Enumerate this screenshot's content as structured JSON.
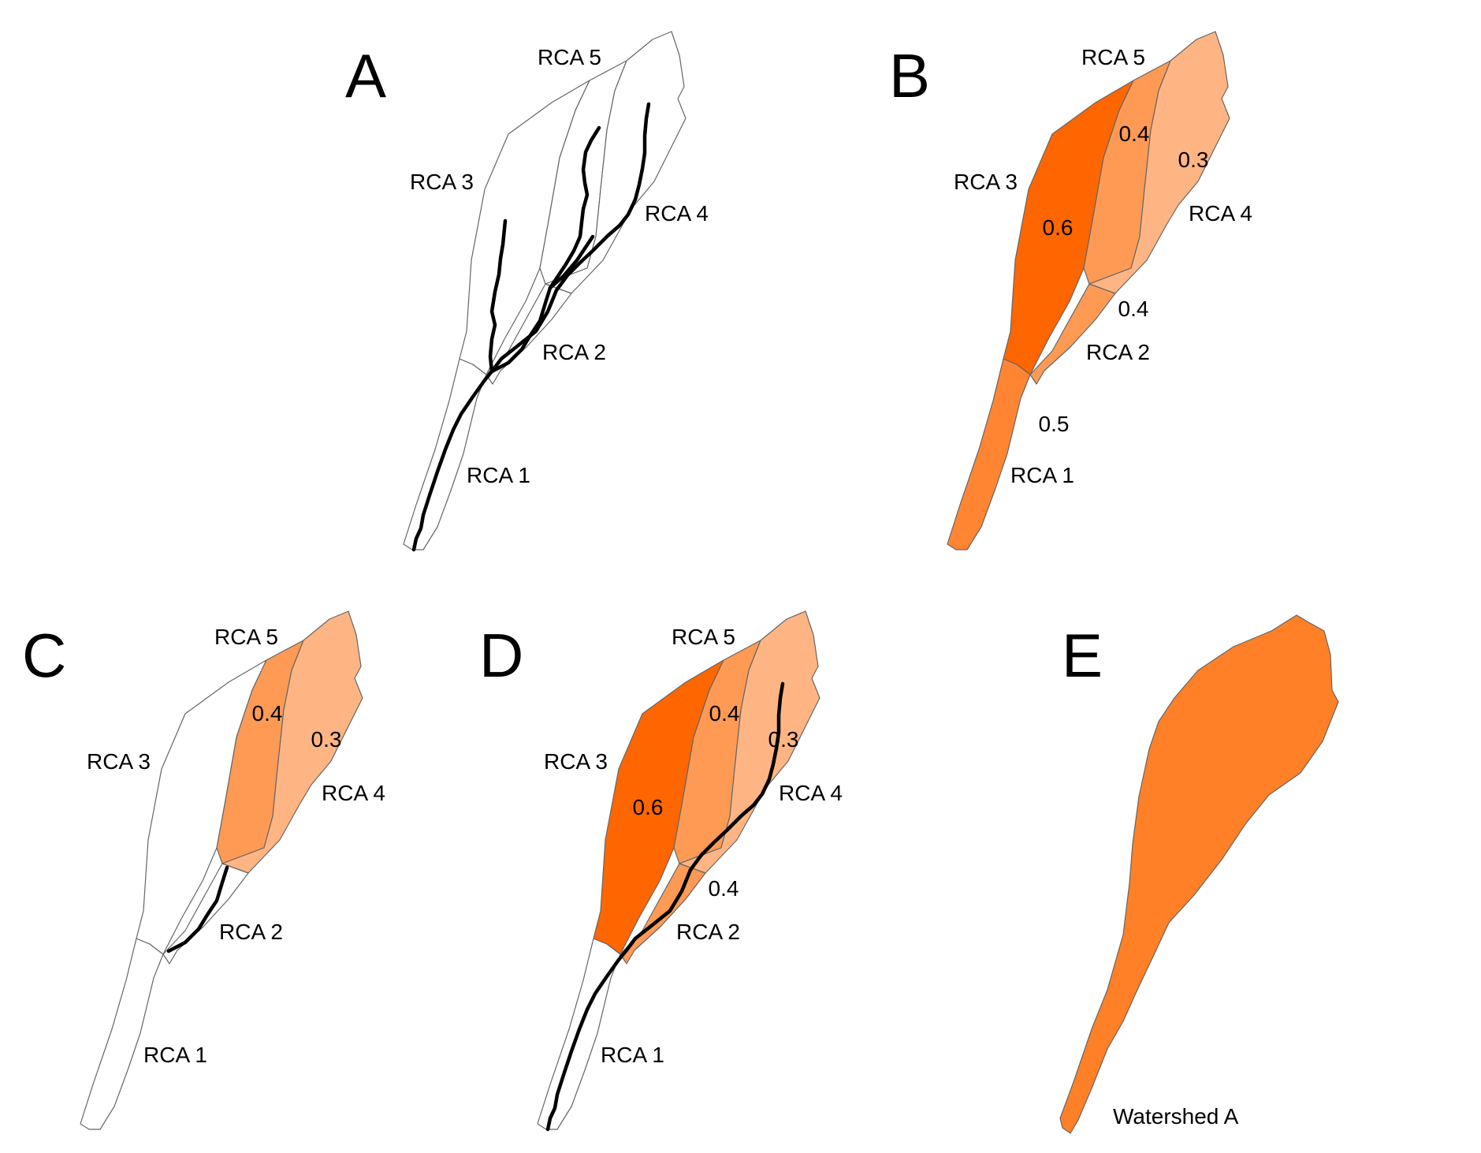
{
  "colors": {
    "none": "#ffffff",
    "high": "#ff6600",
    "mid": "#ff9a55",
    "low": "#ffb583",
    "rca1": "#ff8533",
    "watershed": "#ff8026",
    "outline": "#666666",
    "stream": "#000000"
  },
  "panels": [
    {
      "letter": "A",
      "rca_labels": [
        "RCA 1",
        "RCA 2",
        "RCA 3",
        "RCA 4",
        "RCA 5"
      ],
      "values": {
        "rca1": "",
        "rca2": "",
        "rca3": "",
        "rca4": "",
        "rca5": ""
      },
      "fills": {
        "rca1": "none",
        "rca2": "none",
        "rca3": "none",
        "rca4": "none",
        "rca5": "none"
      },
      "streams": [
        "main",
        "rca3",
        "rca2",
        "rca5",
        "rca4"
      ]
    },
    {
      "letter": "B",
      "rca_labels": [
        "RCA 1",
        "RCA 2",
        "RCA 3",
        "RCA 4",
        "RCA 5"
      ],
      "values": {
        "rca1": "0.5",
        "rca2": "0.4",
        "rca3": "0.6",
        "rca4": "0.3",
        "rca5": "0.4"
      },
      "fills": {
        "rca1": "rca1",
        "rca2": "mid",
        "rca3": "high",
        "rca4": "low",
        "rca5": "mid"
      },
      "streams": []
    },
    {
      "letter": "C",
      "rca_labels": [
        "RCA 1",
        "RCA 2",
        "RCA 3",
        "RCA 4",
        "RCA 5"
      ],
      "values": {
        "rca1": "",
        "rca2": "",
        "rca3": "",
        "rca4": "0.3",
        "rca5": "0.4"
      },
      "fills": {
        "rca1": "none",
        "rca2": "none",
        "rca3": "none",
        "rca4": "low",
        "rca5": "mid"
      },
      "streams": [
        "rca2"
      ]
    },
    {
      "letter": "D",
      "rca_labels": [
        "RCA 1",
        "RCA 2",
        "RCA 3",
        "RCA 4",
        "RCA 5"
      ],
      "values": {
        "rca1": "",
        "rca2": "0.4",
        "rca3": "0.6",
        "rca4": "0.3",
        "rca5": "0.4"
      },
      "fills": {
        "rca1": "none",
        "rca2": "mid",
        "rca3": "high",
        "rca4": "low",
        "rca5": "mid"
      },
      "streams": [
        "main"
      ]
    }
  ],
  "panel_e": {
    "letter": "E",
    "label": "Watershed A"
  }
}
